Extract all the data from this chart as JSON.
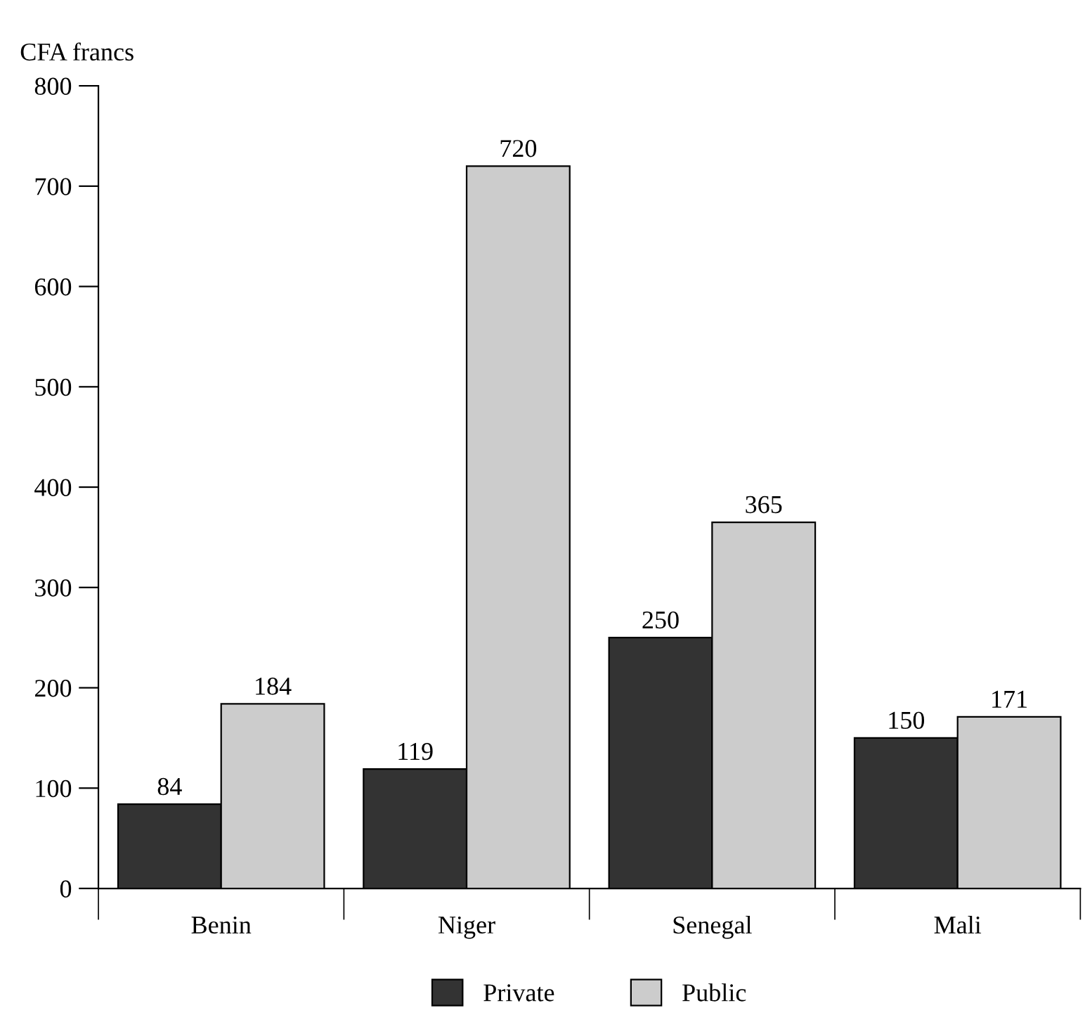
{
  "chart_data": {
    "type": "bar",
    "ylabel": "CFA francs",
    "categories": [
      "Benin",
      "Niger",
      "Senegal",
      "Mali"
    ],
    "series": [
      {
        "name": "Private",
        "color": "#333333",
        "values": [
          84,
          119,
          250,
          150
        ]
      },
      {
        "name": "Public",
        "color": "#cccccc",
        "values": [
          184,
          720,
          365,
          171
        ]
      }
    ],
    "ylim": [
      0,
      800
    ],
    "yticks": [
      0,
      100,
      200,
      300,
      400,
      500,
      600,
      700,
      800
    ],
    "data_labels": true,
    "legend": "bottom",
    "grid": false
  }
}
